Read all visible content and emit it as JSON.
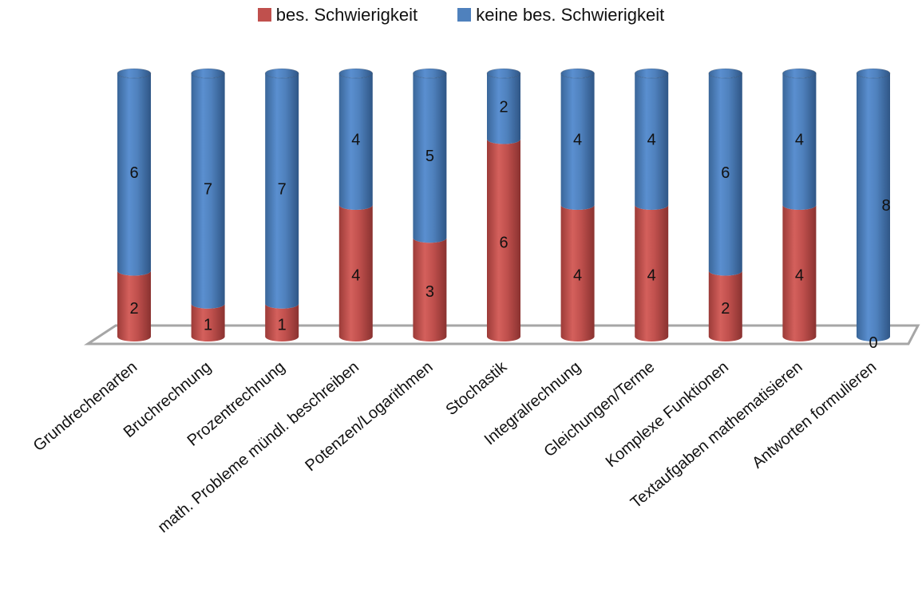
{
  "chart_data": {
    "type": "bar",
    "stacked": true,
    "style": "3d-cylinder",
    "title": "",
    "xlabel": "",
    "ylabel": "",
    "ylim": [
      0,
      8
    ],
    "grid": false,
    "legend_position": "top-center",
    "categories": [
      "Grundrechenarten",
      "Bruchrechnung",
      "Prozentrechnung",
      "math. Probleme mündl. beschreiben",
      "Potenzen/Logarithmen",
      "Stochastik",
      "Integralrechnung",
      "Gleichungen/Terme",
      "Komplexe Funktionen",
      "Textaufgaben mathematisieren",
      "Antworten formulieren"
    ],
    "series": [
      {
        "name": "bes. Schwierigkeit",
        "color": "#c0504d",
        "values": [
          2,
          1,
          1,
          4,
          3,
          6,
          4,
          4,
          2,
          4,
          0
        ]
      },
      {
        "name": "keine bes. Schwierigkeit",
        "color": "#4f81bd",
        "values": [
          6,
          7,
          7,
          4,
          5,
          2,
          4,
          4,
          6,
          4,
          8
        ]
      }
    ]
  }
}
